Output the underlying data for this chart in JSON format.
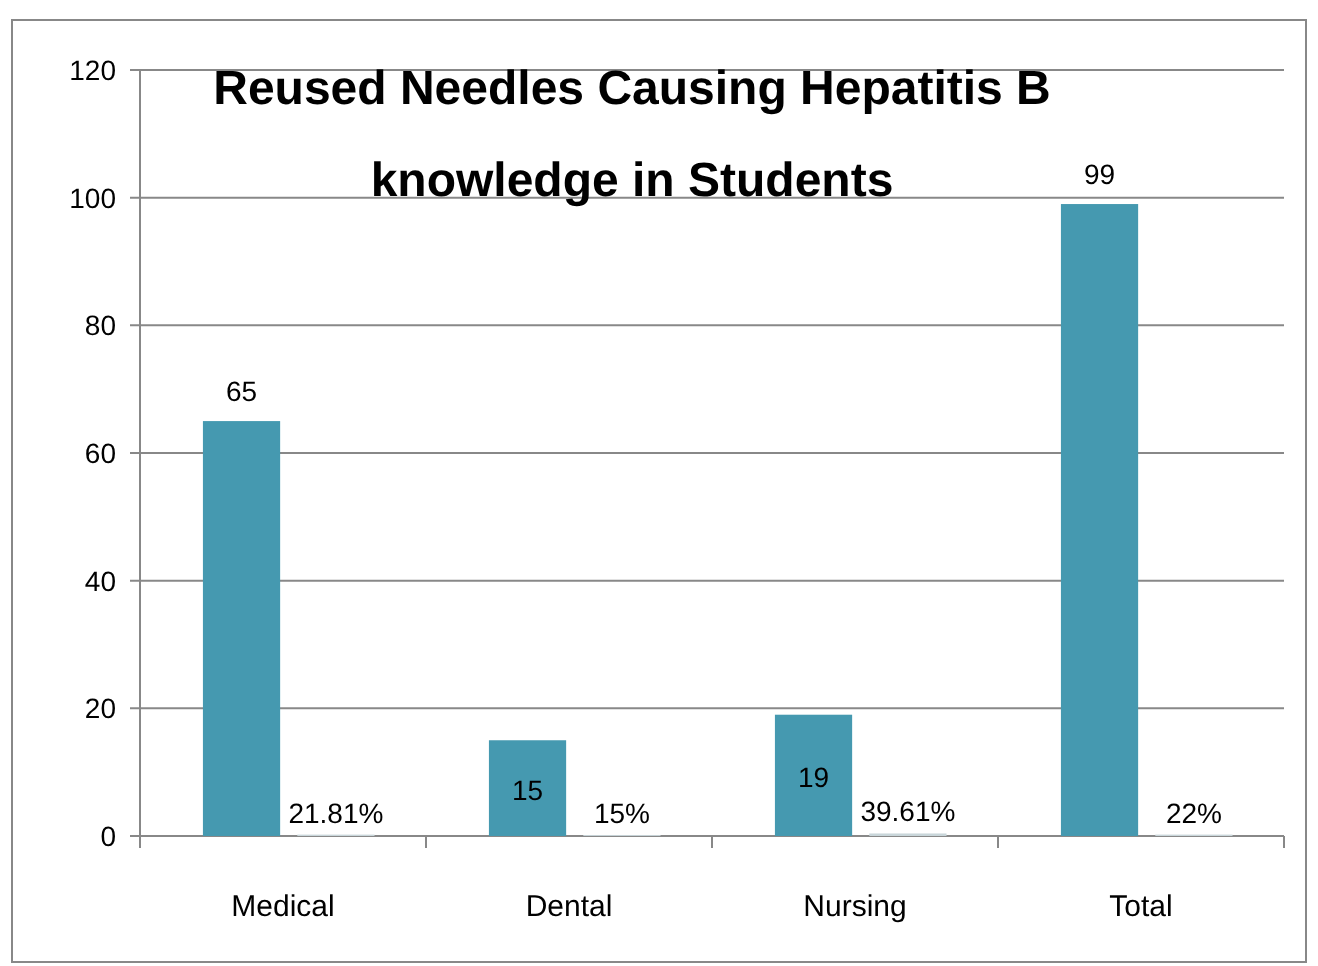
{
  "chart_data": {
    "type": "bar",
    "title": "Reused  Needles Causing Hepatitis B knowledge in Students",
    "categories": [
      "Medical",
      "Dental",
      "Nursing",
      "Total"
    ],
    "series": [
      {
        "color": "#4599b0",
        "values": [
          65,
          15,
          19,
          99
        ],
        "value_labels": [
          "65",
          "15",
          "19",
          "99"
        ]
      },
      {
        "color": "#c9d6da",
        "values": [
          0.2181,
          0.15,
          0.3961,
          0.22
        ],
        "value_labels": [
          "21.81%",
          "15%",
          "39.61%",
          "22%"
        ]
      }
    ],
    "ylim": [
      0,
      120
    ],
    "yticks": [
      0,
      20,
      40,
      60,
      80,
      100,
      120
    ],
    "grid": "y"
  }
}
